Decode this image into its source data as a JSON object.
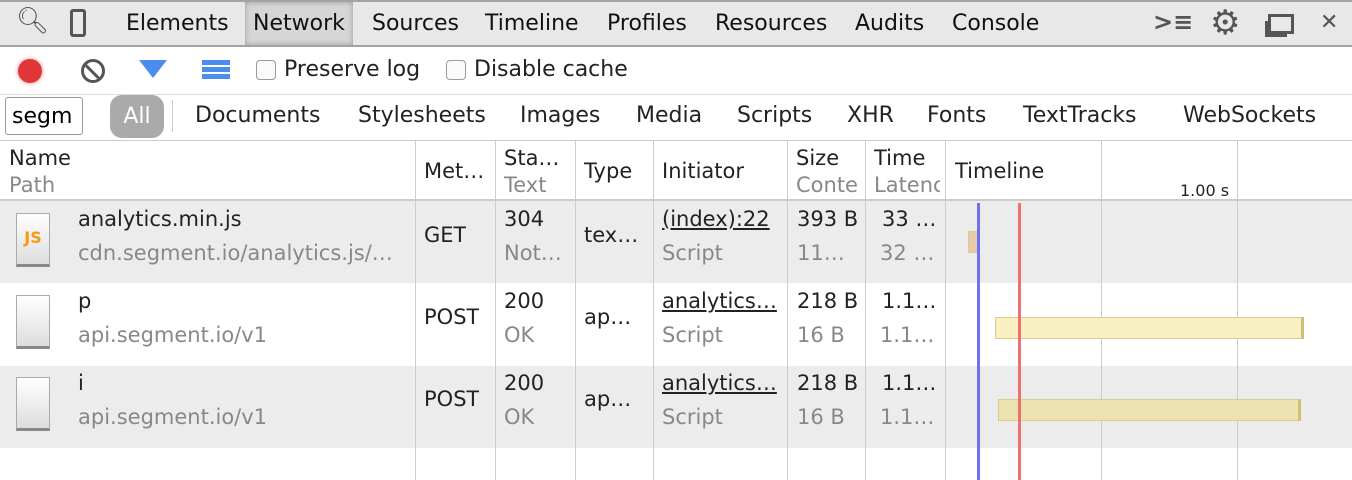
{
  "tabs": {
    "items": [
      {
        "label": "Elements"
      },
      {
        "label": "Network"
      },
      {
        "label": "Sources"
      },
      {
        "label": "Timeline"
      },
      {
        "label": "Profiles"
      },
      {
        "label": "Resources"
      },
      {
        "label": "Audits"
      },
      {
        "label": "Console"
      }
    ],
    "active": "Network"
  },
  "toolbar": {
    "preserve_log": "Preserve log",
    "disable_cache": "Disable cache",
    "record_color": "#e0363a",
    "filter_color": "#4a8cf0"
  },
  "filter": {
    "search_value": "segm",
    "types": [
      "All",
      "Documents",
      "Stylesheets",
      "Images",
      "Media",
      "Scripts",
      "XHR",
      "Fonts",
      "TextTracks",
      "WebSockets"
    ],
    "active": "All"
  },
  "columns": {
    "name": "Name",
    "path": "Path",
    "method": "Met…",
    "status": "Sta…",
    "status_sub": "Text",
    "type": "Type",
    "initiator": "Initiator",
    "size": "Size",
    "size_sub": "Conte",
    "time": "Time",
    "time_sub": "Latenc",
    "timeline": "Timeline",
    "tick": "1.00 s"
  },
  "rows": [
    {
      "name": "analytics.min.js",
      "path": "cdn.segment.io/analytics.js/…",
      "method": "GET",
      "status": "304",
      "status_text": "Not…",
      "type": "tex…",
      "initiator": "(index):22",
      "initiator_type": "Script",
      "size": "393 B",
      "content": "11…",
      "time": "33 …",
      "latency": "32 …",
      "icon": "js-file-icon",
      "bar": {
        "start": 0.08,
        "end": 0.12,
        "color": "#e8c9a8"
      }
    },
    {
      "name": "p",
      "path": "api.segment.io/v1",
      "method": "POST",
      "status": "200",
      "status_text": "OK",
      "type": "ap…",
      "initiator": "analytics…",
      "initiator_type": "Script",
      "size": "218 B",
      "content": "16 B",
      "time": "1.1…",
      "latency": "1.1…",
      "icon": "blank-file-icon",
      "bar": {
        "start": 0.17,
        "end": 1.23,
        "color": "#f8f0c0"
      }
    },
    {
      "name": "i",
      "path": "api.segment.io/v1",
      "method": "POST",
      "status": "200",
      "status_text": "OK",
      "type": "ap…",
      "initiator": "analytics…",
      "initiator_type": "Script",
      "size": "218 B",
      "content": "16 B",
      "time": "1.1…",
      "latency": "1.1…",
      "icon": "blank-file-icon",
      "bar": {
        "start": 0.18,
        "end": 1.22,
        "color": "#ece3b0"
      }
    }
  ],
  "markers": {
    "dom_content_loaded": 0.11,
    "load": 0.25,
    "dom_color": "#7070f0",
    "load_color": "#f07070"
  }
}
